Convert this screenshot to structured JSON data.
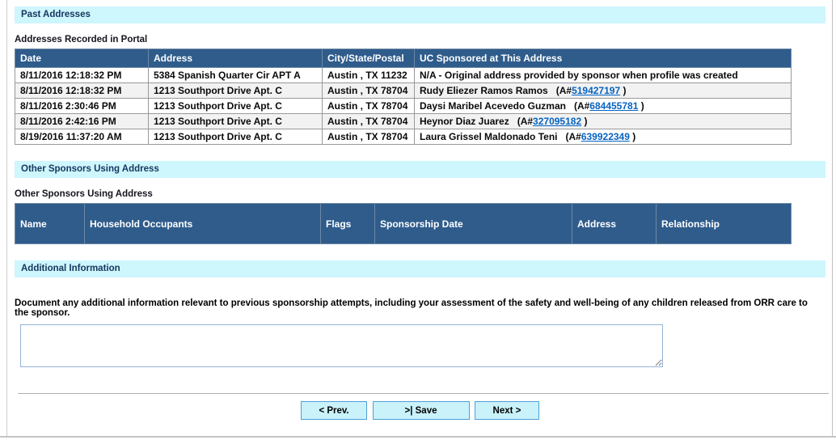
{
  "colors": {
    "section_bar_bg": "#CDF6FD",
    "section_bar_text": "#17365D",
    "table_header_bg": "#2F5C8B",
    "table_header_text": "#FFFFFF",
    "row_alt_bg": "#F2F2F2",
    "link_blue": "#0563C1",
    "button_bg": "#C9F2FB",
    "button_border": "#4F9FD5"
  },
  "past_addresses": {
    "section_title": "Past Addresses",
    "table_label": "Addresses Recorded in Portal",
    "columns": [
      "Date",
      "Address",
      "City/State/Postal",
      "UC Sponsored at This Address"
    ],
    "a_number_prefix": "(A#",
    "a_number_suffix": ")",
    "rows": [
      {
        "date": "8/11/2016 12:18:32 PM",
        "address": "5384 Spanish Quarter Cir APT A",
        "city_state_postal": "Austin , TX 11232",
        "uc_sponsored": {
          "text": "N/A - Original address provided by sponsor when profile was created"
        }
      },
      {
        "date": "8/11/2016 12:18:32 PM",
        "address": "1213 Southport Drive Apt. C",
        "city_state_postal": "Austin , TX 78704",
        "uc_sponsored": {
          "name": "Rudy Eliezer Ramos Ramos",
          "a_number": "519427197"
        }
      },
      {
        "date": "8/11/2016 2:30:46 PM",
        "address": "1213 Southport Drive Apt. C",
        "city_state_postal": "Austin , TX 78704",
        "uc_sponsored": {
          "name": "Daysi Maribel Acevedo Guzman",
          "a_number": "684455781"
        }
      },
      {
        "date": "8/11/2016 2:42:16 PM",
        "address": "1213 Southport Drive Apt. C",
        "city_state_postal": "Austin , TX 78704",
        "uc_sponsored": {
          "name": "Heynor Diaz Juarez",
          "a_number": "327095182"
        }
      },
      {
        "date": "8/19/2016 11:37:20 AM",
        "address": "1213 Southport Drive Apt. C",
        "city_state_postal": "Austin , TX 78704",
        "uc_sponsored": {
          "name": "Laura Grissel Maldonado Teni",
          "a_number": "639922349"
        }
      }
    ]
  },
  "other_sponsors": {
    "section_title": "Other Sponsors Using Address",
    "table_label": "Other Sponsors Using Address",
    "columns": [
      "Name",
      "Household Occupants",
      "Flags",
      "Sponsorship Date",
      "Address",
      "Relationship"
    ],
    "rows": []
  },
  "additional_information": {
    "section_title": "Additional Information",
    "instruction": "Document any additional information relevant to previous sponsorship attempts, including your assessment of the safety and well-being of any children released from ORR care to the sponsor.",
    "textarea_value": ""
  },
  "footer": {
    "prev_label": "< Prev.",
    "save_label": ">| Save",
    "next_label": "Next >"
  }
}
